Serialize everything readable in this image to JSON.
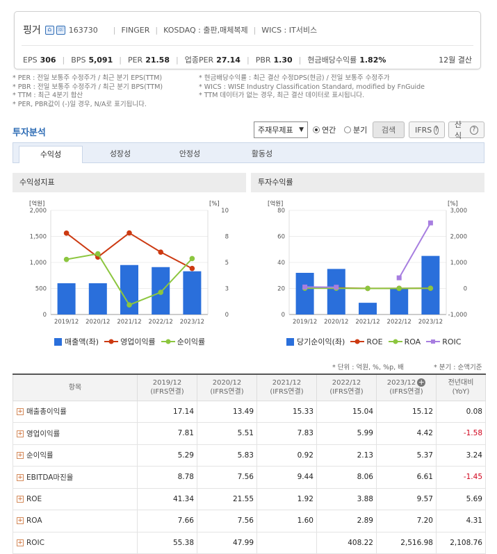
{
  "company": {
    "name": "핑거",
    "code": "163730",
    "english": "FINGER",
    "market": "KOSDAQ : 출판,매체복제",
    "wics": "WICS : IT서비스",
    "metrics": [
      {
        "label": "EPS",
        "value": "306"
      },
      {
        "label": "BPS",
        "value": "5,091"
      },
      {
        "label": "PER",
        "value": "21.58"
      },
      {
        "label": "업종PER",
        "value": "27.14"
      },
      {
        "label": "PBR",
        "value": "1.30"
      },
      {
        "label": "현금배당수익률",
        "value": "1.82%"
      }
    ],
    "settlement": "12월 결산"
  },
  "notes": {
    "left": [
      "* PER : 전일 보통주 수정주가 / 최근 분기 EPS(TTM)",
      "* PBR : 전일 보통주 수정주가 / 최근 분기 BPS(TTM)",
      "* TTM : 최근 4분기 합산",
      "* PER, PBR값이 (-)일 경우, N/A로 표기됩니다."
    ],
    "right": [
      "* 현금배당수익률 : 최근 결산 수정DPS(현금) / 전일 보통주 수정주가",
      "* WICS : WISE Industry Classification Standard, modified by FnGuide",
      "* TTM 데이터가 없는 경우, 최근 결산 데이터로 표시됩니다."
    ]
  },
  "analysis": {
    "title": "투자분석",
    "select_value": "주재무제표",
    "radio_annual": "연간",
    "radio_quarter": "분기",
    "search_button": "검색",
    "ifrs_button": "IFRS",
    "formula_button": "산식",
    "tabs": [
      "수익성",
      "성장성",
      "안정성",
      "활동성"
    ]
  },
  "panels": {
    "left_title": "수익성지표",
    "right_title": "투자수익률"
  },
  "chart_data": [
    {
      "type": "bar",
      "categories": [
        "2019/12",
        "2020/12",
        "2021/12",
        "2022/12",
        "2023/12"
      ],
      "y_left_unit": "[억원]",
      "y_right_unit": "[%]",
      "y_left_ticks": [
        "2,000",
        "1,500",
        "1,000",
        "500",
        "0"
      ],
      "y_right_ticks": [
        "10",
        "8",
        "5",
        "3",
        "0"
      ],
      "ylim": [
        0,
        2000
      ],
      "y2lim": [
        0,
        10
      ],
      "series": [
        {
          "name": "매출액(좌)",
          "kind": "bar",
          "axis": "left",
          "color": "#2a6fdb",
          "values": [
            600,
            600,
            950,
            910,
            830
          ]
        },
        {
          "name": "영업이익률",
          "kind": "line",
          "axis": "right",
          "color": "#cc3a12",
          "values": [
            7.81,
            5.51,
            7.83,
            5.99,
            4.42
          ]
        },
        {
          "name": "순이익률",
          "kind": "line",
          "axis": "right",
          "color": "#8cc63f",
          "values": [
            5.29,
            5.83,
            0.92,
            2.13,
            5.37
          ]
        }
      ]
    },
    {
      "type": "bar",
      "categories": [
        "2019/12",
        "2020/12",
        "2021/12",
        "2022/12",
        "2023/12"
      ],
      "y_left_unit": "[억원]",
      "y_right_unit": "[%]",
      "y_left_ticks": [
        "80",
        "60",
        "40",
        "20",
        "0"
      ],
      "y_right_ticks": [
        "3,000",
        "2,000",
        "1,000",
        "0",
        "-1,000"
      ],
      "ylim": [
        0,
        80
      ],
      "y2lim": [
        -1000,
        3000
      ],
      "series": [
        {
          "name": "당기순이익(좌)",
          "kind": "bar",
          "axis": "left",
          "color": "#2a6fdb",
          "values": [
            32,
            35,
            9,
            20,
            45
          ]
        },
        {
          "name": "ROE",
          "kind": "line",
          "axis": "right",
          "color": "#cc3a12",
          "values": [
            41.34,
            21.55,
            1.92,
            3.88,
            9.57
          ]
        },
        {
          "name": "ROA",
          "kind": "line",
          "axis": "right",
          "color": "#8cc63f",
          "values": [
            7.66,
            7.56,
            1.6,
            2.89,
            7.2
          ]
        },
        {
          "name": "ROIC",
          "kind": "line",
          "axis": "right",
          "color": "#a77ee0",
          "values": [
            55.38,
            47.99,
            null,
            408.22,
            2516.98
          ]
        }
      ]
    }
  ],
  "table": {
    "unit_note": "* 단위 : 억원, %, %p, 배",
    "period_note": "* 분기 : 순액기준",
    "headers": {
      "item": "항목",
      "years": [
        {
          "year": "2019/12",
          "basis": "(IFRS연결)"
        },
        {
          "year": "2020/12",
          "basis": "(IFRS연결)"
        },
        {
          "year": "2021/12",
          "basis": "(IFRS연결)"
        },
        {
          "year": "2022/12",
          "basis": "(IFRS연결)"
        },
        {
          "year": "2023/12",
          "basis": "(IFRS연결)"
        }
      ],
      "yoy": "전년대비",
      "yoy_sub": "(YoY)"
    },
    "rows": [
      {
        "label": "매출총이익률",
        "values": [
          "17.14",
          "13.49",
          "15.33",
          "15.04",
          "15.12"
        ],
        "yoy": "0.08"
      },
      {
        "label": "영업이익률",
        "values": [
          "7.81",
          "5.51",
          "7.83",
          "5.99",
          "4.42"
        ],
        "yoy": "-1.58"
      },
      {
        "label": "순이익률",
        "values": [
          "5.29",
          "5.83",
          "0.92",
          "2.13",
          "5.37"
        ],
        "yoy": "3.24"
      },
      {
        "label": "EBITDA마진율",
        "values": [
          "8.78",
          "7.56",
          "9.44",
          "8.06",
          "6.61"
        ],
        "yoy": "-1.45"
      },
      {
        "label": "ROE",
        "values": [
          "41.34",
          "21.55",
          "1.92",
          "3.88",
          "9.57"
        ],
        "yoy": "5.69"
      },
      {
        "label": "ROA",
        "values": [
          "7.66",
          "7.56",
          "1.60",
          "2.89",
          "7.20"
        ],
        "yoy": "4.31"
      },
      {
        "label": "ROIC",
        "values": [
          "55.38",
          "47.99",
          "",
          "408.22",
          "2,516.98"
        ],
        "yoy": "2,108.76"
      }
    ]
  }
}
